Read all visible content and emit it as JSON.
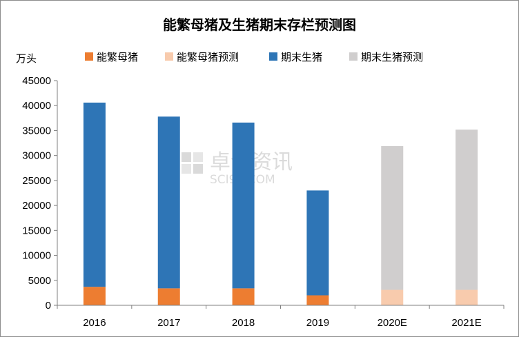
{
  "chart_data": {
    "type": "bar",
    "stacked": true,
    "title": "能繁母猪及生猪期末存栏预测图",
    "unit_label": "万头",
    "categories": [
      "2016",
      "2017",
      "2018",
      "2019",
      "2020E",
      "2021E"
    ],
    "ylim": [
      0,
      45000
    ],
    "yticks": [
      0,
      5000,
      10000,
      15000,
      20000,
      25000,
      30000,
      35000,
      40000,
      45000
    ],
    "grid": false,
    "legend_position": "top",
    "series": [
      {
        "name": "能繁母猪",
        "color": "#ED7D31",
        "values": [
          3700,
          3400,
          3400,
          2000,
          null,
          null
        ]
      },
      {
        "name": "能繁母猪预测",
        "color": "#F8CBAD",
        "values": [
          null,
          null,
          null,
          null,
          3100,
          3100
        ]
      },
      {
        "name": "期末生猪",
        "color": "#2E75B6",
        "values": [
          36900,
          34400,
          33200,
          21000,
          null,
          null
        ]
      },
      {
        "name": "期末生猪预测",
        "color": "#D0CECE",
        "values": [
          null,
          null,
          null,
          null,
          28800,
          32100
        ]
      }
    ]
  },
  "watermark": {
    "text_cn": "卓创资讯",
    "text_en": "SCI99.COM"
  }
}
